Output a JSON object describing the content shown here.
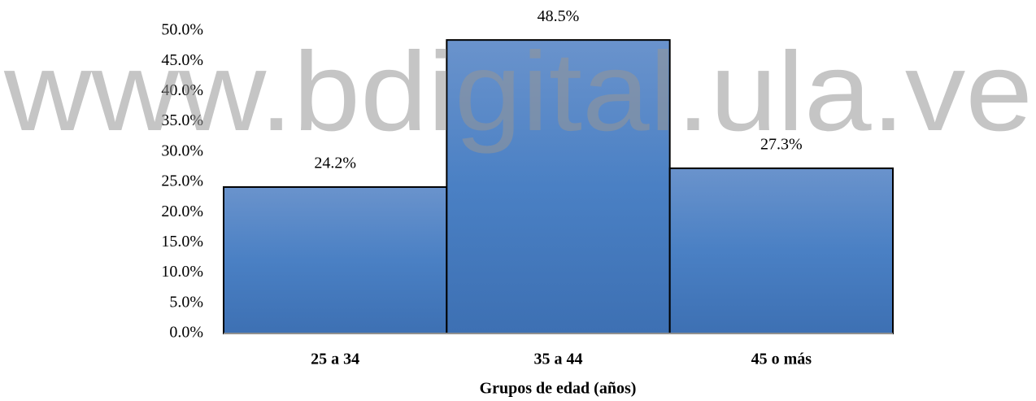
{
  "chart_data": {
    "type": "bar",
    "x_label": "Grupos de edad (años)",
    "watermark": "www.bdigital.ula.ve",
    "categories": [
      "25 a 34",
      "35 a 44",
      "45 o más"
    ],
    "values": [
      24.2,
      48.5,
      27.3
    ],
    "value_labels": [
      "24.2%",
      "48.5%",
      "27.3%"
    ],
    "color": "#4a7ebf",
    "ylim": [
      0,
      50
    ],
    "yticks": [
      {
        "value": 0,
        "label": "0.0%"
      },
      {
        "value": 5,
        "label": "5.0%"
      },
      {
        "value": 10,
        "label": "10.0%"
      },
      {
        "value": 15,
        "label": "15.0%"
      },
      {
        "value": 20,
        "label": "20.0%"
      },
      {
        "value": 25,
        "label": "25.0%"
      },
      {
        "value": 30,
        "label": "30.0%"
      },
      {
        "value": 35,
        "label": "35.0%"
      },
      {
        "value": 40,
        "label": "40.0%"
      },
      {
        "value": 45,
        "label": "45.0%"
      },
      {
        "value": 50,
        "label": "50.0%"
      }
    ],
    "grid": false
  }
}
